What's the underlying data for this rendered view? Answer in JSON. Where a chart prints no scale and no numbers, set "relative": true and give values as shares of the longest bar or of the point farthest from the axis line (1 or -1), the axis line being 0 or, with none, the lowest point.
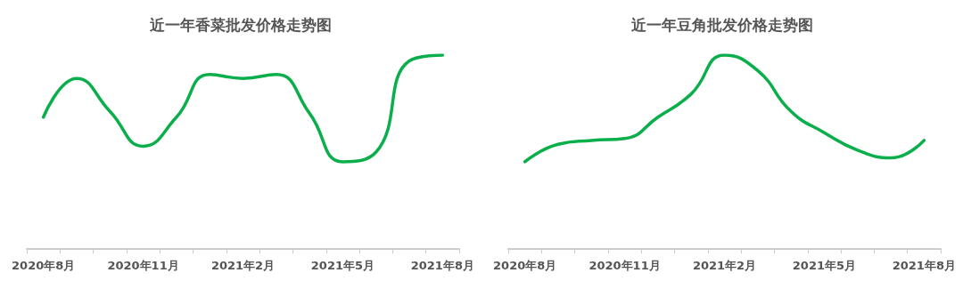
{
  "chart_data": [
    {
      "type": "line",
      "title": "近一年香菜批发价格走势图",
      "relative": true,
      "categories": [
        "2020年8月",
        null,
        null,
        "2020年11月",
        null,
        null,
        "2021年2月",
        null,
        null,
        "2021年5月",
        null,
        null,
        "2021年8月"
      ],
      "series": [
        {
          "color": "#0aaf4b",
          "values": [
            0.68,
            0.88,
            0.71,
            0.53,
            0.68,
            0.9,
            0.88,
            0.9,
            0.7,
            0.45,
            0.5,
            0.97,
            1
          ]
        }
      ],
      "marker": "none",
      "grid": false
    },
    {
      "type": "line",
      "title": "近一年豆角批发价格走势图",
      "relative": true,
      "categories": [
        "2020年8月",
        null,
        null,
        "2020年11月",
        null,
        null,
        "2021年2月",
        null,
        null,
        "2021年5月",
        null,
        null,
        "2021年8月"
      ],
      "series": [
        {
          "color": "#0aaf4b",
          "values": [
            0.45,
            0.54,
            0.56,
            0.57,
            0.68,
            0.8,
            1,
            0.92,
            0.71,
            0.6,
            0.51,
            0.47,
            0.56
          ]
        }
      ],
      "marker": "none",
      "grid": false
    }
  ]
}
